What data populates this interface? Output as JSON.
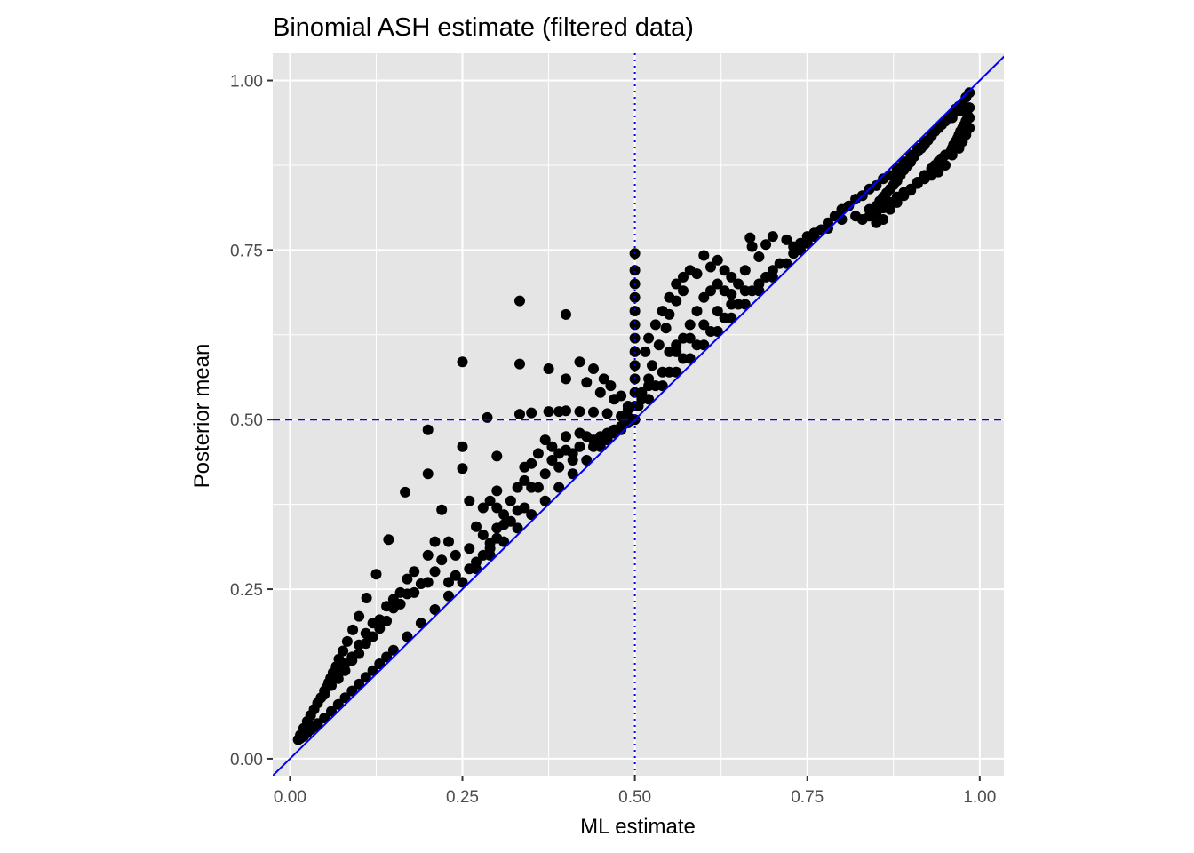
{
  "chart_data": {
    "type": "scatter",
    "title": "Binomial ASH estimate (filtered data)",
    "xlabel": "ML estimate",
    "ylabel": "Posterior mean",
    "xlim": [
      -0.025,
      1.035
    ],
    "ylim": [
      -0.025,
      1.04
    ],
    "x_ticks": [
      "0.00",
      "0.25",
      "0.50",
      "0.75",
      "1.00"
    ],
    "y_ticks": [
      "0.00",
      "0.25",
      "0.50",
      "0.75",
      "1.00"
    ],
    "grid": true,
    "legend": "none",
    "reference_lines": [
      {
        "kind": "identity",
        "slope": 1,
        "intercept": 0,
        "color": "#0000ff",
        "style": "solid"
      },
      {
        "kind": "horizontal",
        "y": 0.5,
        "color": "#0000ff",
        "style": "dashed"
      },
      {
        "kind": "vertical",
        "x": 0.5,
        "color": "#0000ff",
        "style": "dotted"
      }
    ],
    "colors": {
      "panel": "#e5e5e5",
      "grid": "#ffffff",
      "points": "#000000",
      "ref_line": "#0000ff"
    },
    "points": [
      [
        0.333,
        0.675
      ],
      [
        0.4,
        0.655
      ],
      [
        0.25,
        0.585
      ],
      [
        0.333,
        0.582
      ],
      [
        0.2,
        0.485
      ],
      [
        0.167,
        0.393
      ],
      [
        0.143,
        0.323
      ],
      [
        0.125,
        0.272
      ],
      [
        0.111,
        0.237
      ],
      [
        0.1,
        0.21
      ],
      [
        0.091,
        0.19
      ],
      [
        0.083,
        0.173
      ],
      [
        0.077,
        0.159
      ],
      [
        0.071,
        0.147
      ],
      [
        0.067,
        0.136
      ],
      [
        0.0625,
        0.127
      ],
      [
        0.059,
        0.119
      ],
      [
        0.056,
        0.112
      ],
      [
        0.053,
        0.105
      ],
      [
        0.05,
        0.1
      ],
      [
        0.045,
        0.09
      ],
      [
        0.04,
        0.082
      ],
      [
        0.035,
        0.073
      ],
      [
        0.03,
        0.064
      ],
      [
        0.025,
        0.055
      ],
      [
        0.02,
        0.045
      ],
      [
        0.015,
        0.035
      ],
      [
        0.012,
        0.028
      ],
      [
        0.015,
        0.03
      ],
      [
        0.02,
        0.033
      ],
      [
        0.025,
        0.038
      ],
      [
        0.03,
        0.043
      ],
      [
        0.035,
        0.047
      ],
      [
        0.04,
        0.052
      ],
      [
        0.05,
        0.06
      ],
      [
        0.06,
        0.07
      ],
      [
        0.07,
        0.08
      ],
      [
        0.08,
        0.09
      ],
      [
        0.09,
        0.1
      ],
      [
        0.1,
        0.11
      ],
      [
        0.11,
        0.12
      ],
      [
        0.12,
        0.13
      ],
      [
        0.13,
        0.14
      ],
      [
        0.14,
        0.15
      ],
      [
        0.15,
        0.16
      ],
      [
        0.17,
        0.18
      ],
      [
        0.19,
        0.2
      ],
      [
        0.21,
        0.22
      ],
      [
        0.23,
        0.24
      ],
      [
        0.25,
        0.26
      ],
      [
        0.27,
        0.28
      ],
      [
        0.29,
        0.3
      ],
      [
        0.31,
        0.32
      ],
      [
        0.33,
        0.34
      ],
      [
        0.35,
        0.36
      ],
      [
        0.37,
        0.38
      ],
      [
        0.39,
        0.4
      ],
      [
        0.41,
        0.42
      ],
      [
        0.43,
        0.44
      ],
      [
        0.45,
        0.46
      ],
      [
        0.47,
        0.48
      ],
      [
        0.49,
        0.495
      ],
      [
        0.2,
        0.42
      ],
      [
        0.22,
        0.367
      ],
      [
        0.25,
        0.428
      ],
      [
        0.25,
        0.46
      ],
      [
        0.26,
        0.38
      ],
      [
        0.28,
        0.37
      ],
      [
        0.286,
        0.503
      ],
      [
        0.3,
        0.446
      ],
      [
        0.3,
        0.395
      ],
      [
        0.32,
        0.38
      ],
      [
        0.33,
        0.366
      ],
      [
        0.34,
        0.37
      ],
      [
        0.31,
        0.345
      ],
      [
        0.27,
        0.342
      ],
      [
        0.23,
        0.32
      ],
      [
        0.24,
        0.3
      ],
      [
        0.26,
        0.31
      ],
      [
        0.27,
        0.29
      ],
      [
        0.28,
        0.33
      ],
      [
        0.29,
        0.318
      ],
      [
        0.3,
        0.325
      ],
      [
        0.22,
        0.293
      ],
      [
        0.21,
        0.276
      ],
      [
        0.2,
        0.26
      ],
      [
        0.19,
        0.258
      ],
      [
        0.18,
        0.245
      ],
      [
        0.17,
        0.243
      ],
      [
        0.16,
        0.228
      ],
      [
        0.15,
        0.222
      ],
      [
        0.14,
        0.203
      ],
      [
        0.13,
        0.192
      ],
      [
        0.12,
        0.18
      ],
      [
        0.11,
        0.17
      ],
      [
        0.1,
        0.155
      ],
      [
        0.09,
        0.145
      ],
      [
        0.08,
        0.13
      ],
      [
        0.07,
        0.118
      ],
      [
        0.2,
        0.3
      ],
      [
        0.21,
        0.32
      ],
      [
        0.18,
        0.276
      ],
      [
        0.17,
        0.265
      ],
      [
        0.16,
        0.245
      ],
      [
        0.15,
        0.235
      ],
      [
        0.14,
        0.225
      ],
      [
        0.13,
        0.205
      ],
      [
        0.12,
        0.2
      ],
      [
        0.11,
        0.185
      ],
      [
        0.1,
        0.168
      ],
      [
        0.09,
        0.15
      ],
      [
        0.08,
        0.14
      ],
      [
        0.07,
        0.125
      ],
      [
        0.06,
        0.108
      ],
      [
        0.05,
        0.095
      ],
      [
        0.23,
        0.26
      ],
      [
        0.24,
        0.27
      ],
      [
        0.26,
        0.28
      ],
      [
        0.28,
        0.3
      ],
      [
        0.29,
        0.31
      ],
      [
        0.3,
        0.34
      ],
      [
        0.32,
        0.35
      ],
      [
        0.31,
        0.36
      ],
      [
        0.3,
        0.37
      ],
      [
        0.29,
        0.38
      ],
      [
        0.33,
        0.4
      ],
      [
        0.35,
        0.4
      ],
      [
        0.34,
        0.41
      ],
      [
        0.36,
        0.4
      ],
      [
        0.37,
        0.42
      ],
      [
        0.38,
        0.44
      ],
      [
        0.36,
        0.45
      ],
      [
        0.37,
        0.47
      ],
      [
        0.35,
        0.435
      ],
      [
        0.34,
        0.43
      ],
      [
        0.38,
        0.46
      ],
      [
        0.39,
        0.45
      ],
      [
        0.4,
        0.455
      ],
      [
        0.41,
        0.44
      ],
      [
        0.4,
        0.475
      ],
      [
        0.42,
        0.48
      ],
      [
        0.43,
        0.475
      ],
      [
        0.44,
        0.47
      ],
      [
        0.45,
        0.475
      ],
      [
        0.46,
        0.48
      ],
      [
        0.47,
        0.485
      ],
      [
        0.48,
        0.49
      ],
      [
        0.42,
        0.46
      ],
      [
        0.41,
        0.45
      ],
      [
        0.39,
        0.43
      ],
      [
        0.44,
        0.46
      ],
      [
        0.46,
        0.47
      ],
      [
        0.48,
        0.485
      ],
      [
        0.333,
        0.508
      ],
      [
        0.35,
        0.51
      ],
      [
        0.375,
        0.512
      ],
      [
        0.39,
        0.512
      ],
      [
        0.4,
        0.513
      ],
      [
        0.42,
        0.512
      ],
      [
        0.44,
        0.511
      ],
      [
        0.46,
        0.509
      ],
      [
        0.48,
        0.505
      ],
      [
        0.49,
        0.503
      ],
      [
        0.495,
        0.501
      ],
      [
        0.375,
        0.575
      ],
      [
        0.4,
        0.56
      ],
      [
        0.43,
        0.555
      ],
      [
        0.45,
        0.54
      ],
      [
        0.47,
        0.53
      ],
      [
        0.49,
        0.515
      ],
      [
        0.42,
        0.585
      ],
      [
        0.44,
        0.575
      ],
      [
        0.455,
        0.56
      ],
      [
        0.465,
        0.55
      ],
      [
        0.48,
        0.535
      ],
      [
        0.49,
        0.52
      ],
      [
        0.5,
        0.745
      ],
      [
        0.5,
        0.72
      ],
      [
        0.5,
        0.7
      ],
      [
        0.5,
        0.68
      ],
      [
        0.5,
        0.66
      ],
      [
        0.5,
        0.64
      ],
      [
        0.5,
        0.62
      ],
      [
        0.5,
        0.6
      ],
      [
        0.5,
        0.58
      ],
      [
        0.5,
        0.56
      ],
      [
        0.5,
        0.54
      ],
      [
        0.5,
        0.52
      ],
      [
        0.5,
        0.5
      ],
      [
        0.515,
        0.6
      ],
      [
        0.52,
        0.62
      ],
      [
        0.53,
        0.64
      ],
      [
        0.54,
        0.66
      ],
      [
        0.55,
        0.68
      ],
      [
        0.56,
        0.7
      ],
      [
        0.57,
        0.71
      ],
      [
        0.58,
        0.72
      ],
      [
        0.6,
        0.742
      ],
      [
        0.62,
        0.735
      ],
      [
        0.63,
        0.72
      ],
      [
        0.64,
        0.71
      ],
      [
        0.61,
        0.725
      ],
      [
        0.59,
        0.715
      ],
      [
        0.57,
        0.69
      ],
      [
        0.56,
        0.675
      ],
      [
        0.55,
        0.655
      ],
      [
        0.545,
        0.635
      ],
      [
        0.535,
        0.61
      ],
      [
        0.525,
        0.58
      ],
      [
        0.52,
        0.56
      ],
      [
        0.51,
        0.54
      ],
      [
        0.505,
        0.52
      ],
      [
        0.55,
        0.6
      ],
      [
        0.56,
        0.61
      ],
      [
        0.57,
        0.62
      ],
      [
        0.58,
        0.64
      ],
      [
        0.59,
        0.66
      ],
      [
        0.6,
        0.68
      ],
      [
        0.61,
        0.69
      ],
      [
        0.62,
        0.7
      ],
      [
        0.63,
        0.69
      ],
      [
        0.64,
        0.685
      ],
      [
        0.65,
        0.7
      ],
      [
        0.66,
        0.72
      ],
      [
        0.667,
        0.768
      ],
      [
        0.67,
        0.755
      ],
      [
        0.68,
        0.74
      ],
      [
        0.69,
        0.758
      ],
      [
        0.7,
        0.77
      ],
      [
        0.72,
        0.765
      ],
      [
        0.73,
        0.755
      ],
      [
        0.74,
        0.76
      ],
      [
        0.75,
        0.77
      ],
      [
        0.76,
        0.775
      ],
      [
        0.78,
        0.782
      ],
      [
        0.8,
        0.795
      ],
      [
        0.82,
        0.8
      ],
      [
        0.84,
        0.81
      ],
      [
        0.85,
        0.79
      ],
      [
        0.86,
        0.795
      ],
      [
        0.87,
        0.81
      ],
      [
        0.88,
        0.82
      ],
      [
        0.7,
        0.72
      ],
      [
        0.68,
        0.7
      ],
      [
        0.66,
        0.69
      ],
      [
        0.64,
        0.67
      ],
      [
        0.62,
        0.66
      ],
      [
        0.6,
        0.64
      ],
      [
        0.58,
        0.62
      ],
      [
        0.56,
        0.6
      ],
      [
        0.54,
        0.57
      ],
      [
        0.52,
        0.55
      ],
      [
        0.51,
        0.53
      ],
      [
        0.53,
        0.55
      ],
      [
        0.55,
        0.57
      ],
      [
        0.57,
        0.59
      ],
      [
        0.59,
        0.61
      ],
      [
        0.61,
        0.63
      ],
      [
        0.63,
        0.65
      ],
      [
        0.65,
        0.67
      ],
      [
        0.67,
        0.69
      ],
      [
        0.69,
        0.71
      ],
      [
        0.71,
        0.73
      ],
      [
        0.73,
        0.745
      ],
      [
        0.75,
        0.76
      ],
      [
        0.77,
        0.78
      ],
      [
        0.79,
        0.8
      ],
      [
        0.81,
        0.815
      ],
      [
        0.83,
        0.83
      ],
      [
        0.85,
        0.845
      ],
      [
        0.87,
        0.86
      ],
      [
        0.89,
        0.88
      ],
      [
        0.91,
        0.9
      ],
      [
        0.93,
        0.92
      ],
      [
        0.95,
        0.94
      ],
      [
        0.97,
        0.955
      ],
      [
        0.98,
        0.96
      ],
      [
        0.985,
        0.982
      ],
      [
        0.98,
        0.975
      ],
      [
        0.975,
        0.965
      ],
      [
        0.97,
        0.962
      ],
      [
        0.965,
        0.958
      ],
      [
        0.96,
        0.95
      ],
      [
        0.955,
        0.945
      ],
      [
        0.95,
        0.94
      ],
      [
        0.945,
        0.935
      ],
      [
        0.94,
        0.93
      ],
      [
        0.935,
        0.925
      ],
      [
        0.93,
        0.918
      ],
      [
        0.925,
        0.912
      ],
      [
        0.92,
        0.905
      ],
      [
        0.915,
        0.9
      ],
      [
        0.91,
        0.895
      ],
      [
        0.905,
        0.888
      ],
      [
        0.9,
        0.88
      ],
      [
        0.895,
        0.873
      ],
      [
        0.89,
        0.868
      ],
      [
        0.885,
        0.86
      ],
      [
        0.88,
        0.852
      ],
      [
        0.875,
        0.846
      ],
      [
        0.87,
        0.84
      ],
      [
        0.865,
        0.834
      ],
      [
        0.86,
        0.828
      ],
      [
        0.855,
        0.822
      ],
      [
        0.85,
        0.815
      ],
      [
        0.985,
        0.945
      ],
      [
        0.98,
        0.94
      ],
      [
        0.975,
        0.93
      ],
      [
        0.97,
        0.92
      ],
      [
        0.965,
        0.91
      ],
      [
        0.96,
        0.9
      ],
      [
        0.95,
        0.89
      ],
      [
        0.94,
        0.88
      ],
      [
        0.93,
        0.87
      ],
      [
        0.92,
        0.86
      ],
      [
        0.91,
        0.85
      ],
      [
        0.9,
        0.84
      ],
      [
        0.89,
        0.835
      ],
      [
        0.88,
        0.828
      ],
      [
        0.87,
        0.82
      ],
      [
        0.86,
        0.812
      ],
      [
        0.85,
        0.805
      ],
      [
        0.84,
        0.8
      ],
      [
        0.83,
        0.795
      ],
      [
        0.985,
        0.93
      ],
      [
        0.98,
        0.92
      ],
      [
        0.975,
        0.91
      ],
      [
        0.97,
        0.9
      ],
      [
        0.96,
        0.89
      ],
      [
        0.95,
        0.875
      ],
      [
        0.94,
        0.865
      ],
      [
        0.93,
        0.86
      ],
      [
        0.92,
        0.855
      ],
      [
        0.91,
        0.848
      ],
      [
        0.9,
        0.838
      ],
      [
        0.89,
        0.83
      ],
      [
        0.88,
        0.825
      ],
      [
        0.87,
        0.818
      ],
      [
        0.985,
        0.96
      ],
      [
        0.982,
        0.95
      ],
      [
        0.978,
        0.935
      ],
      [
        0.972,
        0.925
      ],
      [
        0.968,
        0.915
      ],
      [
        0.962,
        0.905
      ],
      [
        0.958,
        0.895
      ],
      [
        0.945,
        0.885
      ],
      [
        0.935,
        0.875
      ],
      [
        0.8,
        0.81
      ],
      [
        0.82,
        0.825
      ],
      [
        0.84,
        0.84
      ],
      [
        0.86,
        0.855
      ],
      [
        0.88,
        0.87
      ],
      [
        0.9,
        0.89
      ],
      [
        0.92,
        0.91
      ],
      [
        0.94,
        0.93
      ],
      [
        0.96,
        0.945
      ],
      [
        0.78,
        0.79
      ],
      [
        0.76,
        0.77
      ],
      [
        0.74,
        0.75
      ],
      [
        0.72,
        0.73
      ],
      [
        0.7,
        0.71
      ],
      [
        0.68,
        0.69
      ],
      [
        0.66,
        0.67
      ],
      [
        0.64,
        0.65
      ],
      [
        0.62,
        0.63
      ],
      [
        0.6,
        0.61
      ],
      [
        0.58,
        0.59
      ],
      [
        0.56,
        0.57
      ],
      [
        0.54,
        0.55
      ],
      [
        0.52,
        0.53
      ]
    ]
  }
}
